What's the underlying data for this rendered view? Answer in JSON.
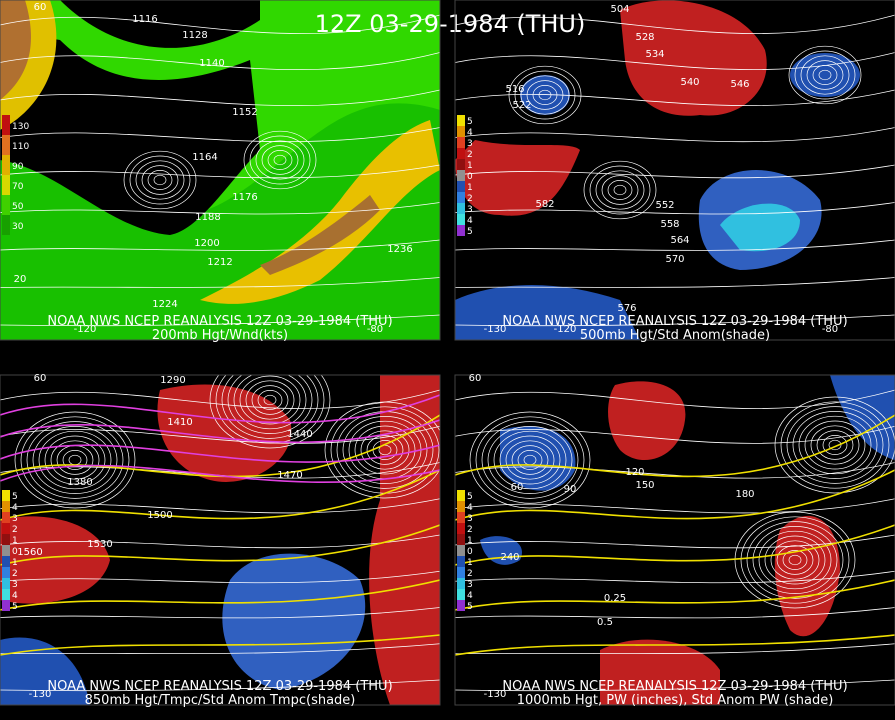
{
  "title": "12Z 03-29-1984 (THU)",
  "panels": [
    {
      "caption": "NOAA NWS NCEP REANALYSIS 12Z 03-29-1984 (THU)",
      "subtitle": "200mb Hgt/Wnd(kts)",
      "colorbar": [
        130,
        110,
        90,
        70,
        50,
        30
      ],
      "contour_labels": [
        1116,
        1128,
        1140,
        1152,
        1164,
        1176,
        1188,
        1200,
        1212,
        1224,
        1236
      ],
      "grid_labels": [
        "60",
        "20",
        "-120",
        "-80"
      ]
    },
    {
      "caption": "NOAA NWS NCEP REANALYSIS 12Z 03-29-1984 (THU)",
      "subtitle": "500mb Hgt/Std Anom(shade)",
      "colorbar": [
        5,
        4,
        3,
        2,
        1,
        0,
        1,
        2,
        3,
        4,
        5
      ],
      "contour_labels": [
        504,
        516,
        522,
        528,
        534,
        540,
        546,
        552,
        558,
        564,
        570,
        576,
        582
      ],
      "grid_labels": [
        "-130",
        "-120",
        "-80"
      ]
    },
    {
      "caption": "NOAA NWS NCEP REANALYSIS 12Z 03-29-1984 (THU)",
      "subtitle": "850mb Hgt/Tmpc/Std Anom Tmpc(shade)",
      "colorbar": [
        5,
        4,
        3,
        2,
        1,
        0,
        1,
        2,
        3,
        4,
        5
      ],
      "contour_labels": [
        1290,
        1380,
        1410,
        1440,
        1470,
        1500,
        1530,
        1560
      ],
      "grid_labels": [
        "60",
        "-130"
      ]
    },
    {
      "caption": "NOAA NWS NCEP REANALYSIS 12Z 03-29-1984 (THU)",
      "subtitle": "1000mb Hgt, PW (inches), Std Anom PW (shade)",
      "colorbar": [
        5,
        4,
        3,
        2,
        1,
        0,
        1,
        2,
        3,
        4,
        5
      ],
      "contour_labels": [
        60,
        90,
        120,
        150,
        180,
        240,
        0.25,
        0.5
      ],
      "grid_labels": [
        "60",
        "-130"
      ]
    }
  ]
}
